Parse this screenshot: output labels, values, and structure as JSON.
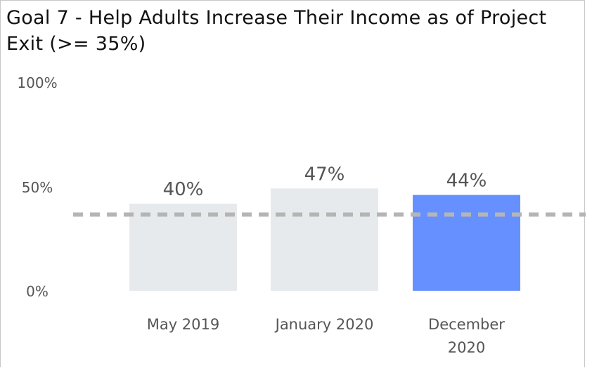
{
  "chart_data": {
    "type": "bar",
    "title": "Goal 7 - Help Adults Increase Their Income as of Project Exit (>= 35%)",
    "categories": [
      [
        "May 2019"
      ],
      [
        "January 2020"
      ],
      [
        "December",
        "2020"
      ]
    ],
    "values": [
      40,
      47,
      44
    ],
    "value_labels": [
      "40%",
      "47%",
      "44%"
    ],
    "y_ticks": [
      0,
      50,
      100
    ],
    "y_tick_labels": [
      "0%",
      "50%",
      "100%"
    ],
    "ylim": [
      0,
      100
    ],
    "target": 35,
    "grid": false,
    "colors": {
      "bar_default": "#e7eaed",
      "bar_highlight": "#6690ff",
      "target_line": "#b5b5b5",
      "text": "#555555"
    },
    "highlight_index": 2
  }
}
